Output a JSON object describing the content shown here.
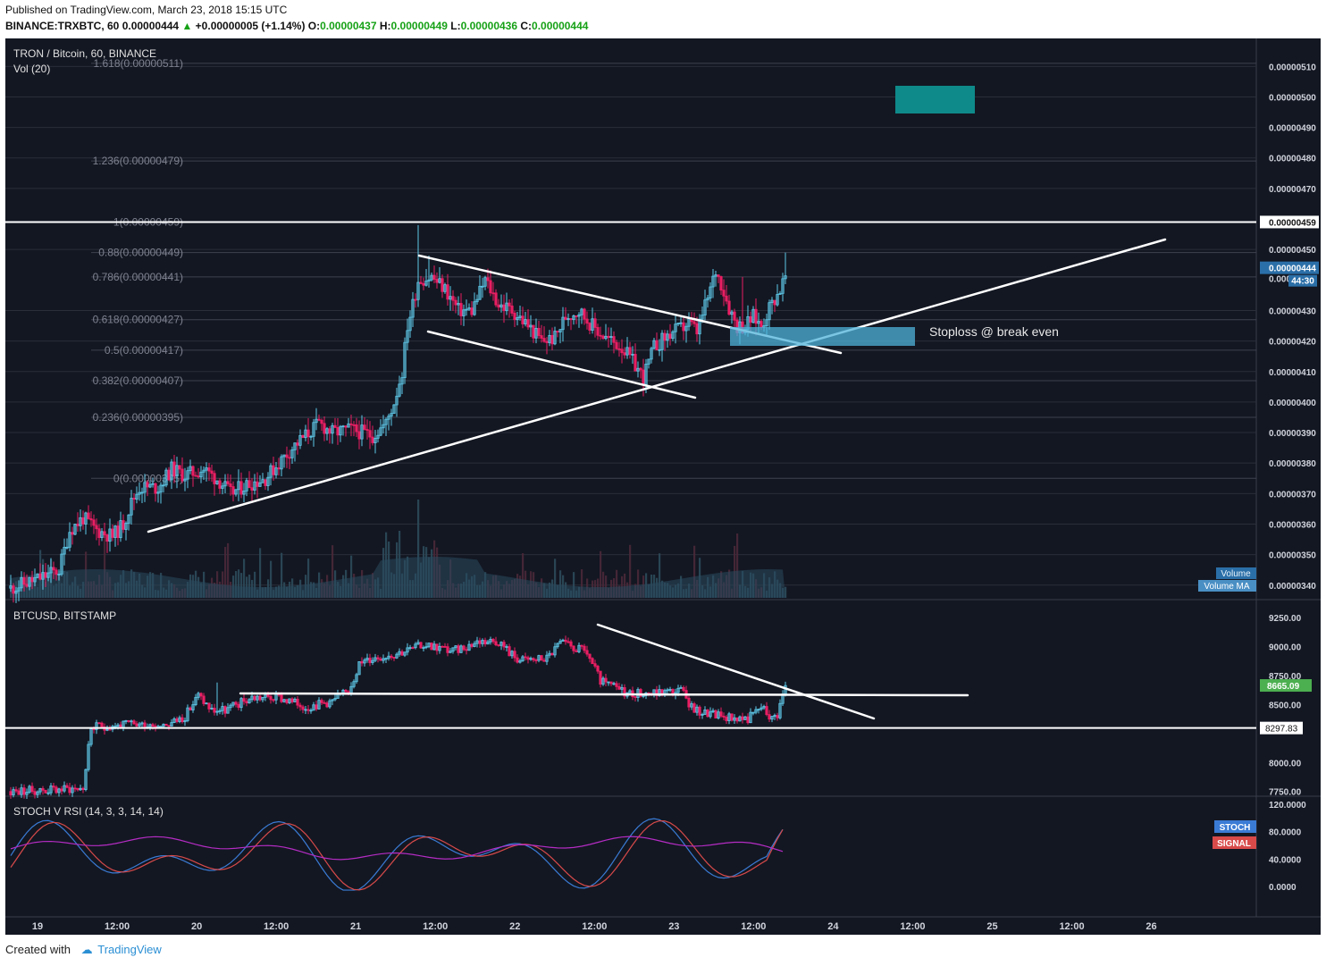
{
  "header": {
    "published": "Published on TradingView.com, March 23, 2018 15:15 UTC",
    "symbol": "BINANCE:TRXBTC, 60",
    "last": "0.00000444",
    "change_arrow": "▲",
    "change": "+0.00000005 (+1.14%)",
    "o_label": "O:",
    "o": "0.00000437",
    "h_label": "H:",
    "h": "0.00000449",
    "l_label": "L:",
    "l": "0.00000436",
    "c_label": "C:",
    "c": "0.00000444"
  },
  "footer": {
    "created_with": "Created with",
    "brand": "TradingView"
  },
  "colors": {
    "background": "#131722",
    "up": "#5ec8e8",
    "down": "#e91e63",
    "grid": "#2a2e39",
    "axis_text": "#d1d4dc",
    "box": "#0e8a8a",
    "stoch": "#3a7bd5",
    "signal": "#d84a4a",
    "rsi": "#b52cc4"
  },
  "chart_data": [
    {
      "type": "candlestick",
      "title": "TRON / Bitcoin, 60, BINANCE",
      "subtitle": "Vol (20)",
      "y_ticks": [
        "0.00000510",
        "0.00000500",
        "0.00000490",
        "0.00000480",
        "0.00000470",
        "0.00000450",
        "0.00000430",
        "0.00000420",
        "0.00000410",
        "0.00000400",
        "0.00000390",
        "0.00000380",
        "0.00000370",
        "0.00000360",
        "0.00000350",
        "0.00000340"
      ],
      "y_tick_values": [
        510,
        500,
        490,
        480,
        470,
        450,
        430,
        420,
        410,
        400,
        390,
        380,
        370,
        360,
        350,
        340
      ],
      "ylim": [
        3.37e-06,
        5.18e-06
      ],
      "price_scale": 1e-08,
      "hline_label": "0.00000459",
      "hline_value": 459,
      "last_price_label": "0.00000444",
      "last_price_value": 444,
      "countdown": "44:30",
      "partial_tick": "0.000",
      "fib_labels": [
        "1.618(0.00000511)",
        "1.236(0.00000479)",
        "1(0.00000459)",
        "0.88(0.00000449)",
        "0.786(0.00000441)",
        "0.618(0.00000427)",
        "0.5(0.00000417)",
        "0.382(0.00000407)",
        "0.236(0.00000395)",
        "0(0.00000375)"
      ],
      "fib_values": [
        511,
        479,
        459,
        449,
        441,
        427,
        417,
        407,
        395,
        375
      ],
      "annotation": "Stoploss @ break even",
      "volume_label": "Volume",
      "volume_ma_label": "Volume MA",
      "close_path": [
        [
          0,
          339
        ],
        [
          10,
          342
        ],
        [
          18,
          345
        ],
        [
          22,
          358
        ],
        [
          27,
          362
        ],
        [
          32,
          358
        ],
        [
          38,
          356
        ],
        [
          42,
          360
        ],
        [
          45,
          367
        ],
        [
          48,
          372
        ],
        [
          55,
          372
        ],
        [
          60,
          378
        ],
        [
          65,
          376
        ],
        [
          72,
          378
        ],
        [
          78,
          374
        ],
        [
          82,
          370
        ],
        [
          88,
          373
        ],
        [
          95,
          375
        ],
        [
          100,
          380
        ],
        [
          105,
          385
        ],
        [
          110,
          389
        ],
        [
          115,
          393
        ],
        [
          120,
          390
        ],
        [
          127,
          391
        ],
        [
          135,
          389
        ],
        [
          140,
          393
        ],
        [
          143,
          400
        ],
        [
          146,
          410
        ],
        [
          148,
          425
        ],
        [
          150,
          432
        ],
        [
          152,
          440
        ],
        [
          157,
          441
        ],
        [
          162,
          437
        ],
        [
          167,
          430
        ],
        [
          172,
          430
        ],
        [
          177,
          440
        ],
        [
          182,
          432
        ],
        [
          187,
          430
        ],
        [
          193,
          425
        ],
        [
          198,
          420
        ],
        [
          203,
          421
        ],
        [
          207,
          428
        ],
        [
          212,
          430
        ],
        [
          217,
          425
        ],
        [
          222,
          421
        ],
        [
          228,
          418
        ],
        [
          233,
          412
        ],
        [
          236,
          408
        ],
        [
          240,
          418
        ],
        [
          244,
          421
        ],
        [
          247,
          423
        ],
        [
          250,
          424
        ],
        [
          253,
          426
        ],
        [
          256,
          423
        ],
        [
          260,
          434
        ],
        [
          263,
          443
        ],
        [
          265,
          439
        ],
        [
          268,
          431
        ],
        [
          271,
          425
        ],
        [
          274,
          425
        ],
        [
          277,
          428
        ],
        [
          280,
          425
        ],
        [
          283,
          431
        ],
        [
          287,
          437
        ],
        [
          289,
          441
        ]
      ],
      "up_wick_hi": [
        449,
        442,
        438,
        438,
        452,
        455,
        455
      ],
      "volume_spikes": "largest near 21 00:00"
    },
    {
      "type": "candlestick",
      "title": "BTCUSD, BITSTAMP",
      "y_ticks": [
        "9250.00",
        "9000.00",
        "8750.00",
        "8500.00",
        "8000.00",
        "7750.00"
      ],
      "y_tick_values": [
        9250,
        9000,
        8750,
        8500,
        8000,
        7750
      ],
      "ylim": [
        7740,
        9290
      ],
      "hline_label": "8297.83",
      "hline_value": 8297.83,
      "last_price_label": "8665.09",
      "last_price_value": 8665.09,
      "close_path": [
        [
          0,
          7750
        ],
        [
          10,
          7760
        ],
        [
          27,
          7780
        ],
        [
          30,
          8300
        ],
        [
          35,
          8310
        ],
        [
          45,
          8330
        ],
        [
          55,
          8330
        ],
        [
          60,
          8340
        ],
        [
          65,
          8400
        ],
        [
          70,
          8580
        ],
        [
          75,
          8450
        ],
        [
          80,
          8450
        ],
        [
          90,
          8560
        ],
        [
          100,
          8560
        ],
        [
          110,
          8480
        ],
        [
          120,
          8530
        ],
        [
          126,
          8620
        ],
        [
          130,
          8850
        ],
        [
          135,
          8900
        ],
        [
          145,
          8950
        ],
        [
          155,
          9020
        ],
        [
          165,
          8960
        ],
        [
          175,
          9050
        ],
        [
          182,
          9050
        ],
        [
          186,
          8950
        ],
        [
          190,
          8880
        ],
        [
          200,
          8900
        ],
        [
          205,
          9030
        ],
        [
          215,
          8950
        ],
        [
          220,
          8700
        ],
        [
          230,
          8600
        ],
        [
          240,
          8600
        ],
        [
          250,
          8620
        ],
        [
          255,
          8450
        ],
        [
          265,
          8400
        ],
        [
          275,
          8380
        ],
        [
          280,
          8480
        ],
        [
          284,
          8380
        ],
        [
          286,
          8420
        ],
        [
          289,
          8665
        ]
      ]
    },
    {
      "type": "line",
      "title": "STOCH V RSI (14, 3, 3, 14, 14)",
      "y_ticks": [
        "120.0000",
        "80.0000",
        "40.0000",
        "0.0000"
      ],
      "y_tick_values": [
        120,
        80,
        40,
        0
      ],
      "ylim": [
        -40,
        125
      ],
      "series": [
        {
          "name": "STOCH",
          "color": "#3a7bd5"
        },
        {
          "name": "SIGNAL",
          "color": "#d84a4a"
        }
      ],
      "rsi_series_color": "#b52cc4"
    }
  ],
  "x_axis": {
    "labels": [
      "12:00",
      "19",
      "12:00",
      "20",
      "12:00",
      "21",
      "12:00",
      "22",
      "12:00",
      "23",
      "12:00",
      "24",
      "12:00",
      "25",
      "12:00",
      "26"
    ],
    "first_bar_hours_before_19": 10,
    "label_hours": [
      -12,
      0,
      12,
      24,
      36,
      48,
      60,
      72,
      84,
      96,
      108,
      120,
      132,
      144,
      156,
      168
    ]
  }
}
